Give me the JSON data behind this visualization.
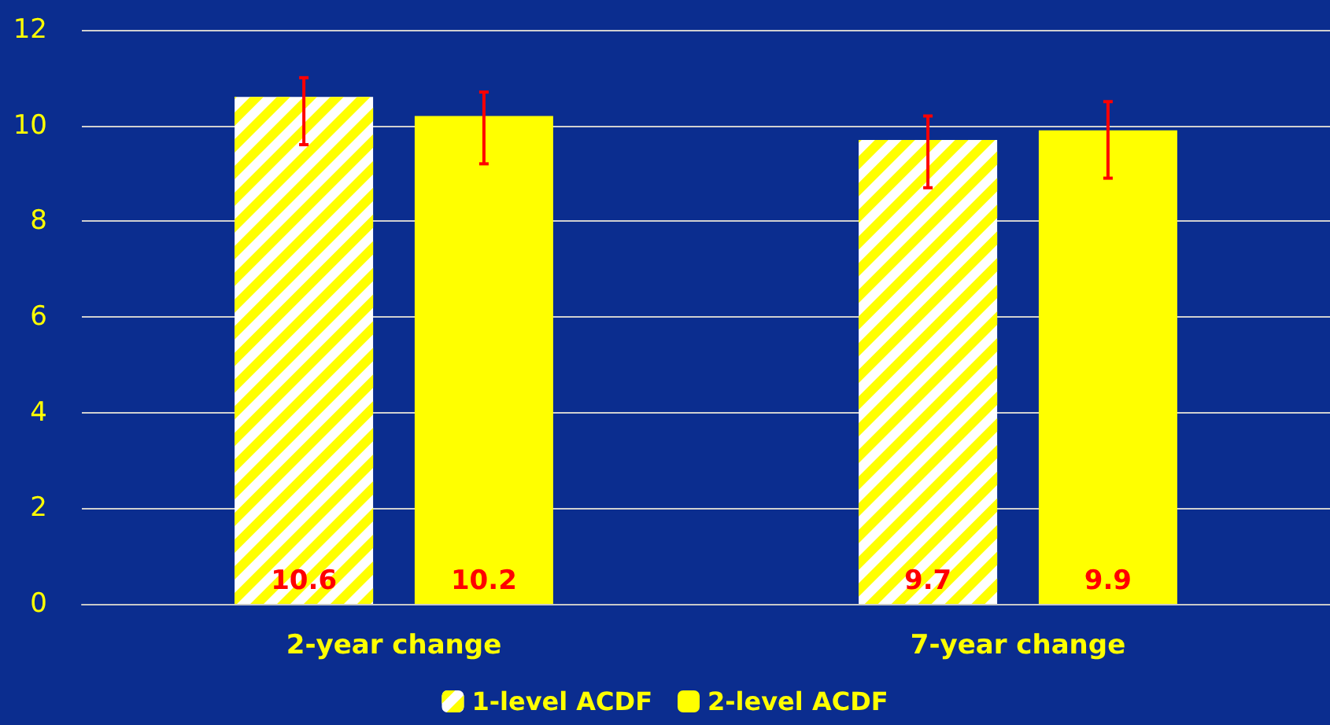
{
  "chart_data": {
    "type": "bar",
    "categories": [
      "2-year change",
      "7-year change"
    ],
    "series": [
      {
        "name": "1-level ACDF",
        "color": "#ffffff",
        "values": [
          10.6,
          9.7
        ],
        "errors": [
          [
            9.6,
            11.0
          ],
          [
            8.7,
            10.2
          ]
        ]
      },
      {
        "name": "2-level ACDF",
        "color": "#ffff00",
        "values": [
          10.2,
          9.9
        ],
        "errors": [
          [
            9.2,
            10.7
          ],
          [
            8.9,
            10.5
          ]
        ]
      }
    ],
    "ylim": [
      0,
      12
    ],
    "yticks": [
      0,
      2,
      4,
      6,
      8,
      10,
      12
    ],
    "grid": "y",
    "legend": "bottom",
    "data_labels": true
  }
}
